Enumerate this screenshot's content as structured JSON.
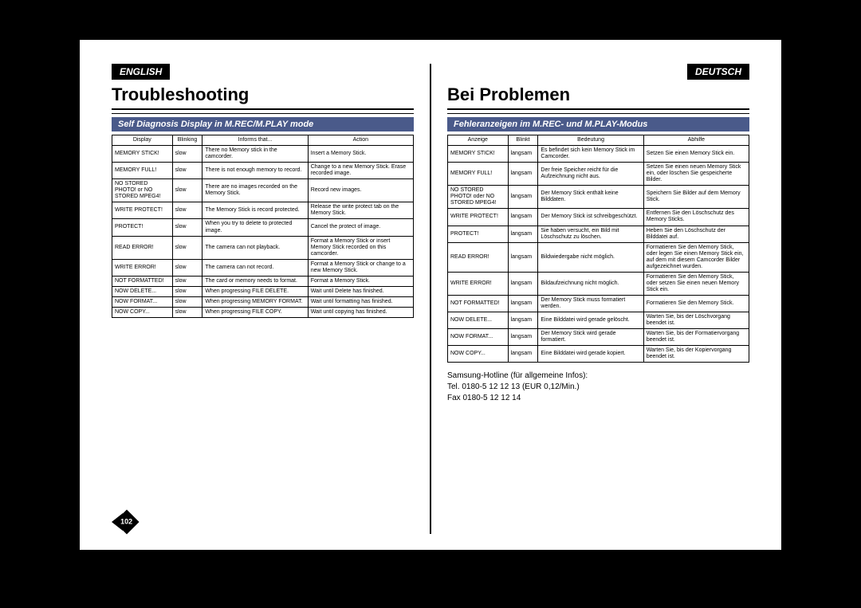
{
  "page_number": "102",
  "left": {
    "lang": "ENGLISH",
    "heading": "Troubleshooting",
    "subheading": "Self Diagnosis Display in M.REC/M.PLAY mode",
    "columns": [
      "Display",
      "Blinking",
      "Informs that...",
      "Action"
    ],
    "rows": [
      [
        "MEMORY STICK!",
        "slow",
        "There no Memory stick in the camcorder.",
        "Insert a Memory Stick."
      ],
      [
        "MEMORY FULL!",
        "slow",
        "There is not enough memory to record.",
        "Change to a new Memory Stick. Erase recorded image."
      ],
      [
        "NO STORED PHOTO! or NO STORED MPEG4!",
        "slow",
        "There are no images recorded on the Memory Stick.",
        "Record new images."
      ],
      [
        "WRITE PROTECT!",
        "slow",
        "The Memory Stick is record protected.",
        "Release the write protect tab on the Memory Stick."
      ],
      [
        "PROTECT!",
        "slow",
        "When you try to delete to protected image.",
        "Cancel the protect of image."
      ],
      [
        "READ ERROR!",
        "slow",
        "The camera can not playback.",
        "Format a Memory Stick or insert Memory Stick recorded on this camcorder."
      ],
      [
        "WRITE ERROR!",
        "slow",
        "The camera can not record.",
        "Format a Memory Stick or change to a new Memory Stick."
      ],
      [
        "NOT FORMATTED!",
        "slow",
        "The card or memory needs to format.",
        "Format a Memory Stick."
      ],
      [
        "NOW DELETE...",
        "slow",
        "When progressing FILE DELETE.",
        "Wait until Delete has finished."
      ],
      [
        "NOW FORMAT...",
        "slow",
        "When progressing MEMORY FORMAT.",
        "Wait until formatting has finished."
      ],
      [
        "NOW COPY...",
        "slow",
        "When progressing FILE COPY.",
        "Wait until copying has finished."
      ]
    ]
  },
  "right": {
    "lang": "DEUTSCH",
    "heading": "Bei Problemen",
    "subheading": "Fehleranzeigen im M.REC- und M.PLAY-Modus",
    "columns": [
      "Anzeige",
      "Blinkt",
      "Bedeutung",
      "Abhilfe"
    ],
    "rows": [
      [
        "MEMORY STICK!",
        "langsam",
        "Es befindet sich kein Memory Stick im Camcorder.",
        "Setzen Sie einen Memory Stick ein."
      ],
      [
        "MEMORY FULL!",
        "langsam",
        "Der freie Speicher reicht für die Aufzeichnung nicht aus.",
        "Setzen Sie einen neuen Memory Stick ein, oder löschen Sie gespeicherte Bilder."
      ],
      [
        "NO STORED PHOTO! oder NO STORED MPEG4!",
        "langsam",
        "Der Memory Stick enthält keine Bilddaten.",
        "Speichern Sie Bilder auf dem Memory Stick."
      ],
      [
        "WRITE PROTECT!",
        "langsam",
        "Der Memory Stick ist schreibgeschützt.",
        "Entfernen Sie den Löschschutz des Memory Sticks."
      ],
      [
        "PROTECT!",
        "langsam",
        "Sie haben versucht, ein Bild mit Löschschutz zu löschen.",
        "Heben Sie den Löschschutz der Bilddatei auf."
      ],
      [
        "READ ERROR!",
        "langsam",
        "Bildwiedergabe nicht möglich.",
        "Formatieren Sie den Memory Stick, oder legen Sie einen Memory Stick ein, auf dem mit diesem Camcorder Bilder aufgezeichnet wurden."
      ],
      [
        "WRITE ERROR!",
        "langsam",
        "Bildaufzeichnung nicht möglich.",
        "Formatieren Sie den Memory Stick, oder setzen Sie einen neuen Memory Stick ein."
      ],
      [
        "NOT FORMATTED!",
        "langsam",
        "Der Memory Stick muss formatiert werden.",
        "Formatieren Sie den Memory Stick."
      ],
      [
        "NOW DELETE...",
        "langsam",
        "Eine Bilddatei wird gerade gelöscht.",
        "Warten Sie, bis der Löschvorgang beendet ist."
      ],
      [
        "NOW FORMAT...",
        "langsam",
        "Der Memory Stick wird gerade formatiert.",
        "Warten Sie, bis der Formatiervorgang beendet ist."
      ],
      [
        "NOW COPY...",
        "langsam",
        "Eine Bilddatei wird gerade kopiert.",
        "Warten Sie, bis der Kopiervorgang beendet ist."
      ]
    ],
    "footer": [
      "Samsung-Hotline (für allgemeine Infos):",
      "Tel. 0180-5 12 12 13 (EUR 0,12/Min.)",
      "Fax 0180-5 12 12 14"
    ]
  }
}
